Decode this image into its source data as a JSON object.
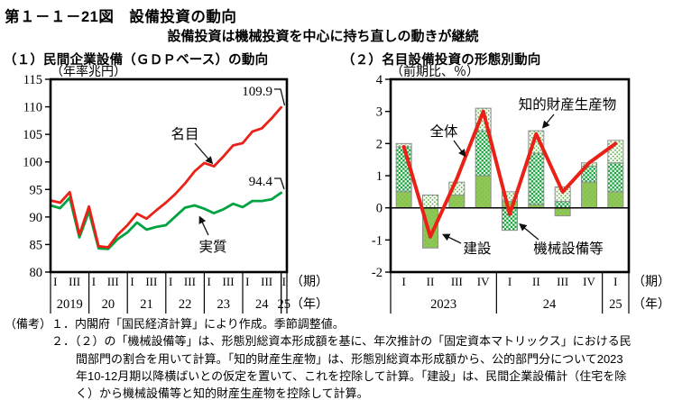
{
  "header": {
    "figure_title": "第１－１－21図　設備投資の動向",
    "subtitle": "設備投資は機械投資を中心に持ち直しの動きが継続"
  },
  "chart_data": [
    {
      "type": "line",
      "title": "（１）民間企業設備（ＧＤＰベース）の動向",
      "unit_label": "（年率兆円）",
      "ylim": [
        80,
        115
      ],
      "yticks": [
        115,
        110,
        105,
        100,
        95,
        90,
        85,
        80
      ],
      "grid": false,
      "x_axis": {
        "period_label": "（期）",
        "year_label": "（年）",
        "quarter_tick_labels": [
          "I",
          "III"
        ],
        "years": [
          {
            "label": "2019",
            "quarters": 4
          },
          {
            "label": "20",
            "quarters": 4
          },
          {
            "label": "21",
            "quarters": 4
          },
          {
            "label": "22",
            "quarters": 4
          },
          {
            "label": "23",
            "quarters": 4
          },
          {
            "label": "24",
            "quarters": 4
          },
          {
            "label": "25",
            "quarters": 1
          }
        ]
      },
      "series": [
        {
          "name": "名目",
          "color": "#ea2117",
          "end_label": "109.9",
          "values": [
            93.0,
            92.6,
            94.5,
            86.8,
            91.9,
            84.7,
            84.5,
            86.8,
            88.5,
            90.6,
            89.7,
            91.2,
            92.6,
            94.2,
            96.1,
            98.3,
            99.8,
            99.2,
            101.0,
            103.0,
            103.4,
            105.5,
            106.1,
            107.9,
            109.9
          ]
        },
        {
          "name": "実質",
          "color": "#00a341",
          "end_label": "94.4",
          "values": [
            92.1,
            91.6,
            93.5,
            86.3,
            91.0,
            84.3,
            84.2,
            86.0,
            87.2,
            89.0,
            87.7,
            88.2,
            88.5,
            90.1,
            91.7,
            92.1,
            91.5,
            90.7,
            91.4,
            92.4,
            91.8,
            92.9,
            92.9,
            93.2,
            94.4
          ]
        }
      ]
    },
    {
      "type": "stacked-bar-line",
      "title": "（２）名目設備投資の形態別動向",
      "unit_label": "（前期比、％）",
      "ylim": [
        -2,
        4
      ],
      "yticks": [
        4,
        3,
        2,
        1,
        0,
        -1,
        -2
      ],
      "x_axis": {
        "period_label": "（期）",
        "year_label": "（年）",
        "years": [
          {
            "label": "2023",
            "quarters": [
              "I",
              "II",
              "III",
              "IV"
            ]
          },
          {
            "label": "24",
            "quarters": [
              "I",
              "II",
              "III",
              "IV"
            ]
          },
          {
            "label": "25",
            "quarters": [
              "I"
            ]
          }
        ]
      },
      "bar_series": [
        {
          "name": "建設",
          "pattern": "solid",
          "values": [
            0.5,
            -1.25,
            0.4,
            1.0,
            0.2,
            0.1,
            -0.25,
            0.8,
            0.5
          ]
        },
        {
          "name": "機械設備等",
          "pattern": "checker",
          "values": [
            1.4,
            0,
            0,
            1.4,
            -0.7,
            1.6,
            0.2,
            0.5,
            0.9
          ]
        },
        {
          "name": "知的財産生産物",
          "pattern": "dots",
          "values": [
            0.1,
            0.4,
            0.4,
            0.7,
            0.3,
            0.7,
            0.45,
            0.1,
            0.7
          ]
        }
      ],
      "line_series": {
        "name": "全体",
        "color": "#ea2117",
        "values": [
          1.9,
          -0.9,
          0.9,
          3.0,
          -0.2,
          2.3,
          0.5,
          1.4,
          2.0
        ]
      }
    }
  ],
  "notes": {
    "label": "（備考）",
    "items": [
      "１．内閣府「国民経済計算」により作成。季節調整値。",
      "２．（２）の「機械設備等」は、形態別総資本形成額を基に、年次推計の「固定資本マトリックス」における民間部門の割合を用いて計算。「知的財産生産物」は、形態別総資本形成額から、公的部門分について2023年10-12月期以降横ばいとの仮定を置いて、これを控除して計算。「建設」は、民間企業設備計（住宅を除く）から機械設備等と知的財産生産物を控除して計算。"
    ]
  },
  "colors": {
    "nominal_line": "#ea2117",
    "real_line": "#00a341",
    "total_line": "#ea2117",
    "bar_solid": "#8fc857",
    "bar_solid_dot": "#7fb848",
    "bar_checker_base": "#18a23b",
    "bar_dots_dot": "#5cb24e",
    "bar_stroke": "#8f8f8f",
    "axis": "#000000"
  }
}
